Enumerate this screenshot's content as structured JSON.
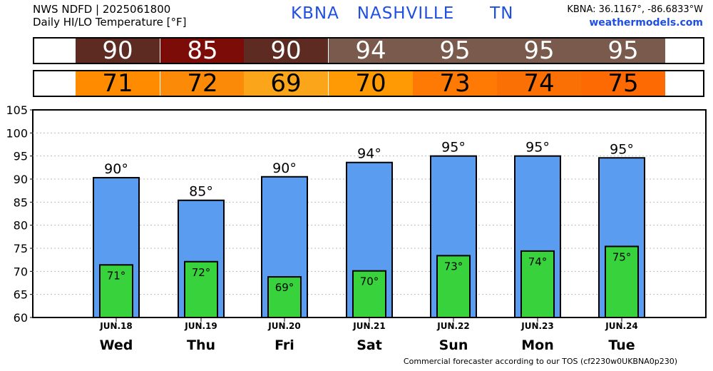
{
  "header": {
    "line1": "NWS NDFD | 2025061800",
    "line2": "Daily HI/LO Temperature [°F]",
    "station": "KBNA",
    "city": "NASHVILLE",
    "state": "TN",
    "coords": "KBNA: 36.1167°, -86.6833°W",
    "site": "weathermodels.com"
  },
  "strips": {
    "hi_labels": [
      "90",
      "85",
      "90",
      "94",
      "95",
      "95",
      "95"
    ],
    "hi_colors": [
      "#5e2b22",
      "#7b0c07",
      "#5e2b22",
      "#7a5a4c",
      "#7a5a4c",
      "#7a5a4c",
      "#7a5a4c"
    ],
    "lo_labels": [
      "71",
      "72",
      "69",
      "70",
      "73",
      "74",
      "75"
    ],
    "lo_colors": [
      "#ff8c00",
      "#fb8a08",
      "#fba51a",
      "#ff9a05",
      "#ff7a05",
      "#fb7005",
      "#fd6a04"
    ]
  },
  "chart_data": {
    "type": "bar",
    "categories": [
      "Wed",
      "Thu",
      "Fri",
      "Sat",
      "Sun",
      "Mon",
      "Tue"
    ],
    "dates": [
      "JUN.18",
      "JUN.19",
      "JUN.20",
      "JUN.21",
      "JUN.22",
      "JUN.23",
      "JUN.24"
    ],
    "series": [
      {
        "values": [
          90.3,
          85.4,
          90.5,
          93.6,
          95.0,
          95.0,
          94.6
        ],
        "labels": [
          "90°",
          "85°",
          "90°",
          "94°",
          "95°",
          "95°",
          "95°"
        ],
        "color": "#5a9cf0"
      },
      {
        "values": [
          71.4,
          72.1,
          68.8,
          70.1,
          73.4,
          74.4,
          75.4
        ],
        "labels": [
          "71°",
          "72°",
          "69°",
          "70°",
          "73°",
          "74°",
          "75°"
        ],
        "color": "#38d23c"
      }
    ],
    "ylim": [
      60,
      105
    ],
    "yticks": [
      60,
      65,
      70,
      75,
      80,
      85,
      90,
      95,
      100,
      105
    ],
    "grid": true
  },
  "footer": "Commercial forecaster according to our TOS (cf2230w0UKBNA0p230)"
}
